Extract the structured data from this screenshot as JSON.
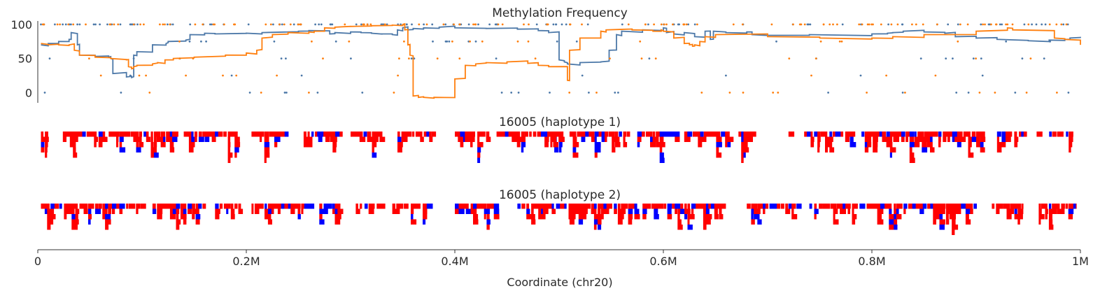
{
  "chart_data": [
    {
      "type": "line",
      "title": "Methylation Frequency",
      "xlim": [
        0,
        1000000
      ],
      "ylim": [
        -15,
        105
      ],
      "yticks": [
        "0",
        "50",
        "100"
      ],
      "ytick_values": [
        0,
        50,
        100
      ],
      "colors": {
        "haplotype_1": "#4c78a8",
        "haplotype_2": "#ff7f0e"
      },
      "series": [
        {
          "color": "#4c78a8",
          "x": [
            3000,
            10000,
            20000,
            30000,
            32000,
            38000,
            40000,
            55000,
            68000,
            70000,
            72000,
            85000,
            90000,
            92000,
            95000,
            110000,
            123000,
            125000,
            142000,
            146000,
            160000,
            170000,
            200000,
            215000,
            240000,
            250000,
            260000,
            280000,
            285000,
            300000,
            310000,
            320000,
            330000,
            340000,
            345000,
            350000,
            355000,
            360000,
            370000,
            385000,
            400000,
            430000,
            460000,
            480000,
            490000,
            500000,
            505000,
            508000,
            520000,
            540000,
            548000,
            555000,
            560000,
            580000,
            600000,
            603000,
            610000,
            620000,
            630000,
            640000,
            645000,
            648000,
            660000,
            680000,
            685000,
            700000,
            740000,
            800000,
            815000,
            820000,
            830000,
            850000,
            870000,
            880000,
            900000,
            920000,
            950000,
            970000,
            985000,
            990000,
            1000000
          ],
          "y": [
            70,
            72,
            75,
            78,
            88,
            70,
            55,
            53,
            52,
            50,
            28,
            23,
            22,
            55,
            60,
            70,
            72,
            75,
            77,
            85,
            87,
            86,
            87,
            88,
            89,
            90,
            91,
            86,
            88,
            89,
            88,
            87,
            86,
            85,
            92,
            95,
            92,
            94,
            95,
            96,
            95,
            94,
            93,
            91,
            88,
            48,
            45,
            42,
            44,
            45,
            62,
            85,
            90,
            92,
            95,
            88,
            86,
            88,
            82,
            90,
            78,
            90,
            88,
            89,
            85,
            84,
            85,
            86,
            87,
            88,
            90,
            89,
            87,
            82,
            80,
            78,
            76,
            77,
            78,
            80,
            80
          ]
        },
        {
          "color": "#ff7f0e",
          "x": [
            3000,
            10000,
            20000,
            30000,
            35000,
            40000,
            55000,
            70000,
            85000,
            87000,
            90000,
            92000,
            95000,
            110000,
            115000,
            122000,
            130000,
            150000,
            180000,
            200000,
            210000,
            215000,
            225000,
            240000,
            260000,
            265000,
            275000,
            285000,
            300000,
            320000,
            340000,
            350000,
            352000,
            355000,
            357000,
            360000,
            365000,
            370000,
            380000,
            400000,
            410000,
            420000,
            430000,
            450000,
            470000,
            480000,
            490000,
            508000,
            510000,
            520000,
            540000,
            545000,
            570000,
            590000,
            598000,
            600000,
            610000,
            620000,
            625000,
            628000,
            630000,
            635000,
            640000,
            650000,
            700000,
            750000,
            800000,
            820000,
            850000,
            900000,
            930000,
            935000,
            975000,
            985000,
            1000000
          ],
          "y": [
            72,
            70,
            70,
            70,
            62,
            55,
            52,
            50,
            48,
            38,
            35,
            38,
            40,
            42,
            44,
            48,
            50,
            52,
            55,
            58,
            62,
            80,
            85,
            88,
            89,
            90,
            95,
            96,
            97,
            98,
            99,
            100,
            92,
            70,
            55,
            -5,
            -7,
            -7,
            -7,
            20,
            40,
            42,
            44,
            45,
            43,
            40,
            38,
            18,
            62,
            80,
            90,
            92,
            92,
            90,
            92,
            90,
            80,
            72,
            70,
            68,
            70,
            75,
            82,
            85,
            82,
            80,
            80,
            82,
            85,
            90,
            95,
            92,
            80,
            78,
            70
          ]
        }
      ]
    },
    {
      "type": "heatmap",
      "title": "16005 (haplotype 1)"
    },
    {
      "type": "heatmap",
      "title": "16005 (haplotype 2)",
      "xlabel": "Coordinate (chr20)",
      "xticks": [
        "0",
        "0.2M",
        "0.4M",
        "0.6M",
        "0.8M",
        "1M"
      ],
      "xtick_values": [
        0,
        200000,
        400000,
        600000,
        800000,
        1000000
      ],
      "colors": {
        "methylated": "#ff0000",
        "unmethylated": "#0000ff"
      }
    }
  ]
}
